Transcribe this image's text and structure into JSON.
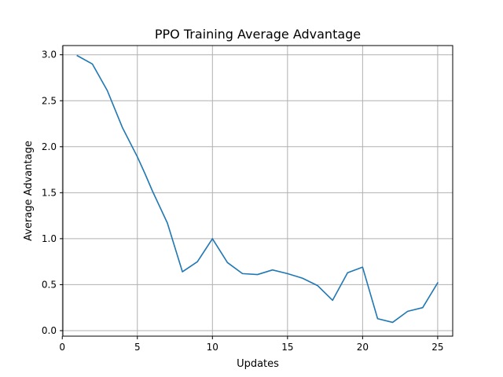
{
  "chart_data": {
    "type": "line",
    "title": "PPO Training Average Advantage",
    "xlabel": "Updates",
    "ylabel": "Average Advantage",
    "xlim": [
      0.04,
      26.0
    ],
    "ylim": [
      -0.06,
      3.1
    ],
    "xticks": [
      0,
      5,
      10,
      15,
      20,
      25
    ],
    "yticks": [
      0.0,
      0.5,
      1.0,
      1.5,
      2.0,
      2.5,
      3.0
    ],
    "grid": true,
    "series": [
      {
        "color": "#1f77b4",
        "x": [
          1,
          2,
          3,
          4,
          5,
          5.5,
          6,
          7,
          8,
          9,
          10,
          11,
          12,
          13,
          14,
          15,
          16,
          17,
          18,
          19,
          20,
          21,
          22,
          23,
          24,
          25
        ],
        "y": [
          2.99,
          2.9,
          2.61,
          2.21,
          1.89,
          1.71,
          1.52,
          1.17,
          0.64,
          0.75,
          1.0,
          0.74,
          0.62,
          0.61,
          0.66,
          0.62,
          0.57,
          0.49,
          0.33,
          0.63,
          0.69,
          0.13,
          0.09,
          0.21,
          0.25,
          0.52
        ]
      }
    ]
  }
}
